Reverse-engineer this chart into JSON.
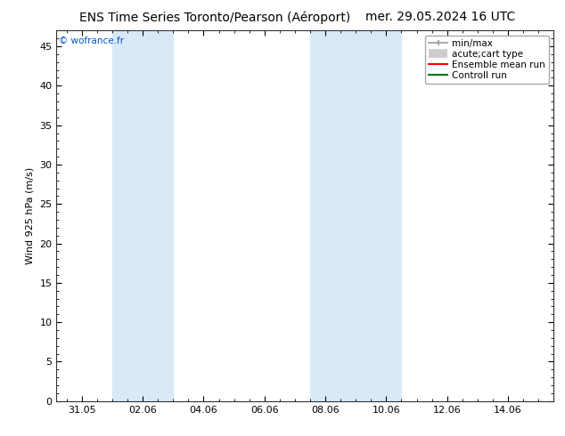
{
  "title_left": "ENS Time Series Toronto/Pearson (Aéroport)",
  "title_right": "mer. 29.05.2024 16 UTC",
  "ylabel": "Wind 925 hPa (m/s)",
  "watermark": "© wofrance.fr",
  "watermark_color": "#0055cc",
  "ylim": [
    0,
    47
  ],
  "yticks": [
    0,
    5,
    10,
    15,
    20,
    25,
    30,
    35,
    40,
    45
  ],
  "xtick_labels": [
    "31.05",
    "02.06",
    "04.06",
    "06.06",
    "08.06",
    "10.06",
    "12.06",
    "14.06"
  ],
  "xtick_positions": [
    0,
    2,
    4,
    6,
    8,
    10,
    12,
    14
  ],
  "xmin": -0.83,
  "xmax": 15.5,
  "bg_color": "#ffffff",
  "plot_bg_color": "#ffffff",
  "shaded_bands": [
    {
      "xmin": 1.0,
      "xmax": 3.0,
      "color": "#d8eaf8"
    },
    {
      "xmin": 7.5,
      "xmax": 8.5,
      "color": "#d8eaf8"
    },
    {
      "xmin": 8.5,
      "xmax": 10.5,
      "color": "#d8eaf8"
    }
  ],
  "legend_items": [
    {
      "label": "min/max",
      "color": "#999999",
      "lw": 1.2,
      "style": "line_with_caps"
    },
    {
      "label": "acute;cart type",
      "color": "#cccccc",
      "lw": 7,
      "style": "thick"
    },
    {
      "label": "Ensemble mean run",
      "color": "#ff0000",
      "lw": 1.5,
      "style": "line"
    },
    {
      "label": "Controll run",
      "color": "#007700",
      "lw": 1.5,
      "style": "line"
    }
  ],
  "title_fontsize": 10,
  "tick_fontsize": 8,
  "ylabel_fontsize": 8,
  "legend_fontsize": 7.5
}
